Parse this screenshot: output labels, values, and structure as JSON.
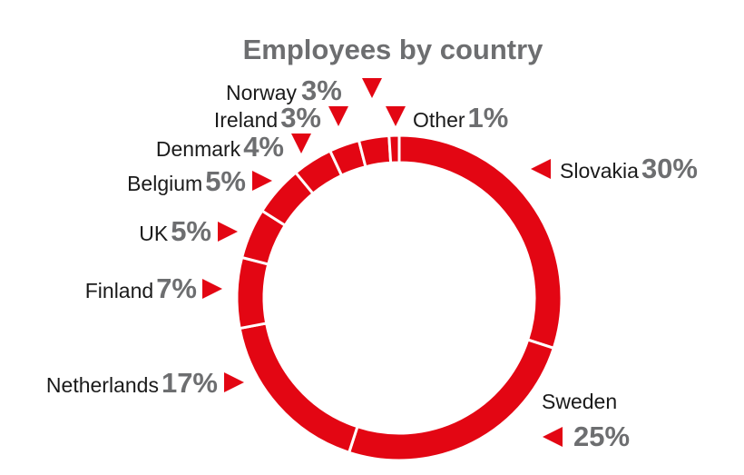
{
  "chart_data": {
    "type": "donut",
    "title": "Employees by country",
    "categories": [
      "Slovakia",
      "Sweden",
      "Netherlands",
      "Finland",
      "UK",
      "Belgium",
      "Denmark",
      "Ireland",
      "Norway",
      "Other"
    ],
    "values": [
      30,
      25,
      17,
      7,
      5,
      5,
      4,
      3,
      3,
      1
    ],
    "value_labels": [
      "30%",
      "25%",
      "17%",
      "7%",
      "5%",
      "5%",
      "4%",
      "3%",
      "3%",
      "1%"
    ],
    "color": "#e30613"
  }
}
